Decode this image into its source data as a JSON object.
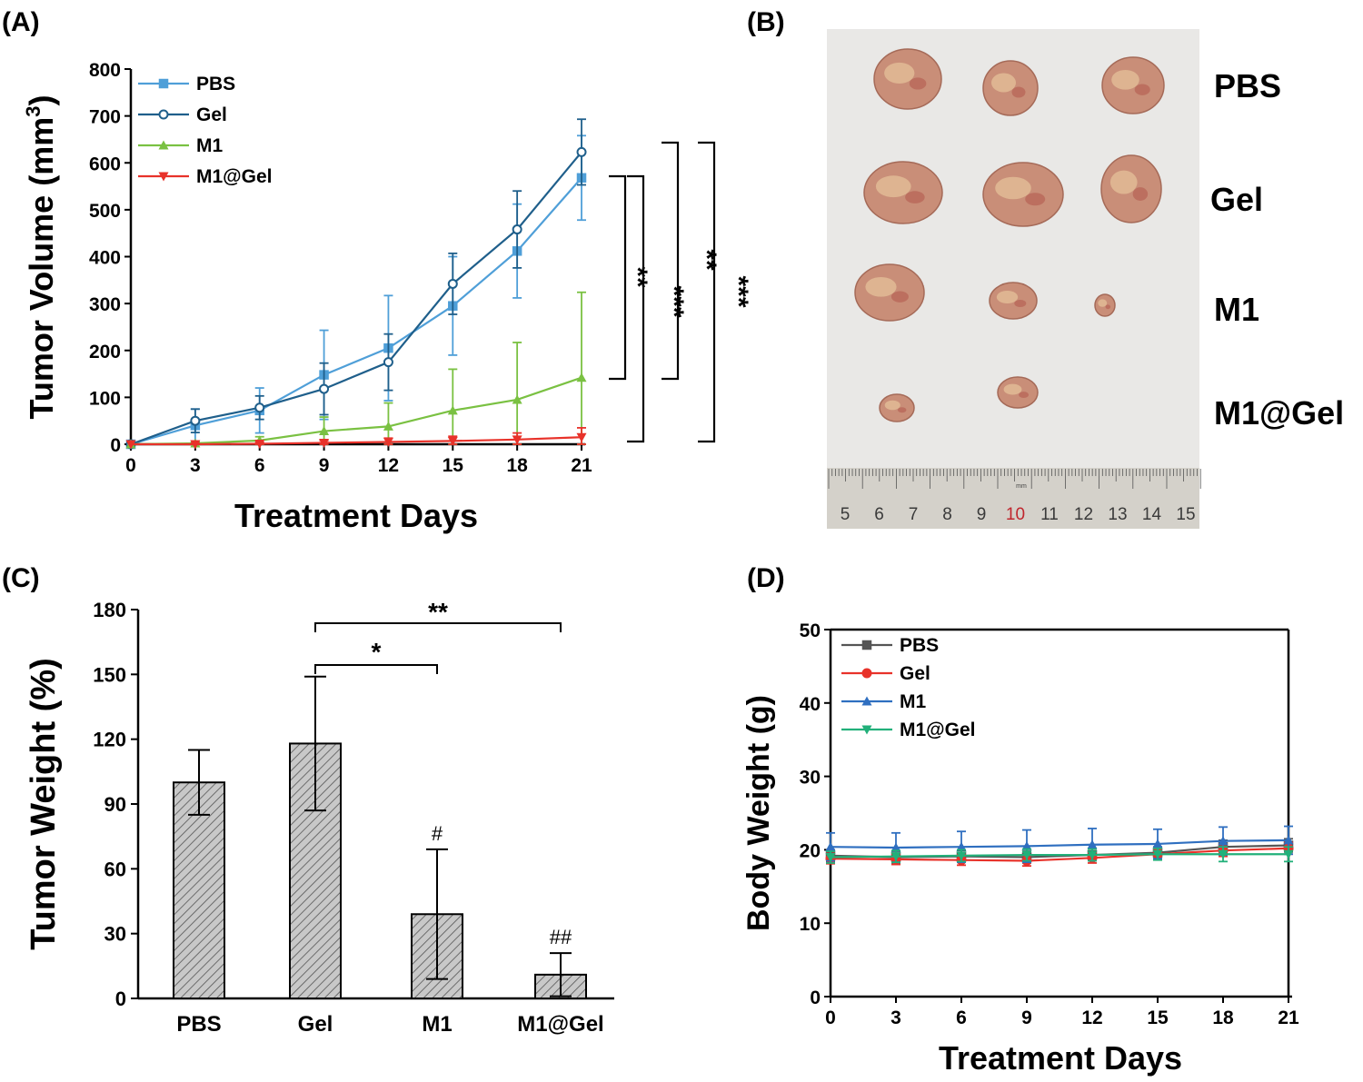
{
  "panels": {
    "A": {
      "label": "(A)"
    },
    "B": {
      "label": "(B)"
    },
    "C": {
      "label": "(C)"
    },
    "D": {
      "label": "(D)"
    }
  },
  "photo": {
    "row_labels": [
      "PBS",
      "Gel",
      "M1",
      "M1@Gel"
    ],
    "ruler_numbers": [
      "5",
      "6",
      "7",
      "8",
      "9",
      "10",
      "11",
      "12",
      "13",
      "14",
      "15"
    ],
    "ruler_unit": "mm",
    "tumor_color": "#c98e78"
  },
  "chart_data": [
    {
      "id": "A",
      "type": "line",
      "xlabel": "Treatment Days",
      "ylabel": "Tumor Volume (mm³)",
      "ylabel_base": "Tumor Volume (mm",
      "ylabel_sup": "3",
      "ylabel_close": ")",
      "xlim": [
        0,
        21
      ],
      "ylim": [
        0,
        800
      ],
      "xticks": [
        "0",
        "3",
        "6",
        "9",
        "12",
        "15",
        "18",
        "21"
      ],
      "yticks": [
        "0",
        "100",
        "200",
        "300",
        "400",
        "500",
        "600",
        "700",
        "800"
      ],
      "x": [
        0,
        3,
        6,
        9,
        12,
        15,
        18,
        21
      ],
      "series": [
        {
          "name": "PBS",
          "color": "#4f9fd8",
          "marker": "square",
          "values": [
            0,
            40,
            72,
            148,
            205,
            295,
            412,
            568
          ],
          "errors": [
            0,
            35,
            48,
            95,
            112,
            105,
            100,
            90
          ]
        },
        {
          "name": "Gel",
          "color": "#1f5f8b",
          "marker": "circle",
          "values": [
            0,
            50,
            78,
            118,
            175,
            342,
            458,
            623
          ],
          "errors": [
            0,
            25,
            25,
            55,
            60,
            65,
            82,
            70
          ]
        },
        {
          "name": "M1",
          "color": "#7ac142",
          "marker": "triangle-up",
          "values": [
            0,
            2,
            8,
            28,
            38,
            72,
            95,
            142
          ],
          "errors": [
            0,
            3,
            8,
            30,
            50,
            88,
            122,
            182
          ]
        },
        {
          "name": "M1@Gel",
          "color": "#e8322a",
          "marker": "triangle-down",
          "values": [
            0,
            0,
            1,
            3,
            5,
            7,
            10,
            15
          ],
          "errors": [
            0,
            2,
            3,
            5,
            8,
            10,
            14,
            20
          ]
        }
      ],
      "annotations": [
        "**",
        "***",
        "**",
        "***"
      ]
    },
    {
      "id": "C",
      "type": "bar",
      "ylabel": "Tumor Weight (%)",
      "categories": [
        "PBS",
        "Gel",
        "M1",
        "M1@Gel"
      ],
      "values": [
        100,
        118,
        39,
        11
      ],
      "errors": [
        15,
        31,
        30,
        10
      ],
      "ylim": [
        0,
        180
      ],
      "yticks": [
        "0",
        "30",
        "60",
        "90",
        "120",
        "150",
        "180"
      ],
      "bar_labels": [
        "",
        "",
        "#",
        "##"
      ],
      "significance": [
        {
          "from": 1,
          "to": 2,
          "label": "*"
        },
        {
          "from": 1,
          "to": 3,
          "label": "**"
        }
      ]
    },
    {
      "id": "D",
      "type": "line",
      "xlabel": "Treatment Days",
      "ylabel": "Body Weight (g)",
      "xlim": [
        0,
        21
      ],
      "ylim": [
        0,
        50
      ],
      "xticks": [
        "0",
        "3",
        "6",
        "9",
        "12",
        "15",
        "18",
        "21"
      ],
      "yticks": [
        "0",
        "10",
        "20",
        "30",
        "40",
        "50"
      ],
      "x": [
        0,
        3,
        6,
        9,
        12,
        15,
        18,
        21
      ],
      "series": [
        {
          "name": "PBS",
          "color": "#555555",
          "marker": "square",
          "values": [
            19.2,
            19.0,
            19.1,
            19.0,
            19.3,
            19.6,
            20.4,
            20.6
          ],
          "errors": [
            0.8,
            0.8,
            0.8,
            0.8,
            0.8,
            0.8,
            0.9,
            0.9
          ]
        },
        {
          "name": "Gel",
          "color": "#e8322a",
          "marker": "circle",
          "values": [
            18.8,
            18.7,
            18.6,
            18.5,
            18.9,
            19.4,
            19.9,
            20.2
          ],
          "errors": [
            0.7,
            0.7,
            0.7,
            0.7,
            0.7,
            0.7,
            0.8,
            0.8
          ]
        },
        {
          "name": "M1",
          "color": "#2f6fc0",
          "marker": "triangle-up",
          "values": [
            20.4,
            20.3,
            20.4,
            20.5,
            20.7,
            20.8,
            21.2,
            21.3
          ],
          "errors": [
            1.9,
            2.0,
            2.1,
            2.2,
            2.2,
            2.0,
            1.9,
            1.9
          ]
        },
        {
          "name": "M1@Gel",
          "color": "#22b07a",
          "marker": "triangle-down",
          "values": [
            19.0,
            19.1,
            19.2,
            19.3,
            19.3,
            19.4,
            19.4,
            19.4
          ],
          "errors": [
            0.8,
            0.8,
            0.8,
            0.8,
            0.8,
            0.8,
            1.0,
            1.0
          ]
        }
      ]
    }
  ]
}
